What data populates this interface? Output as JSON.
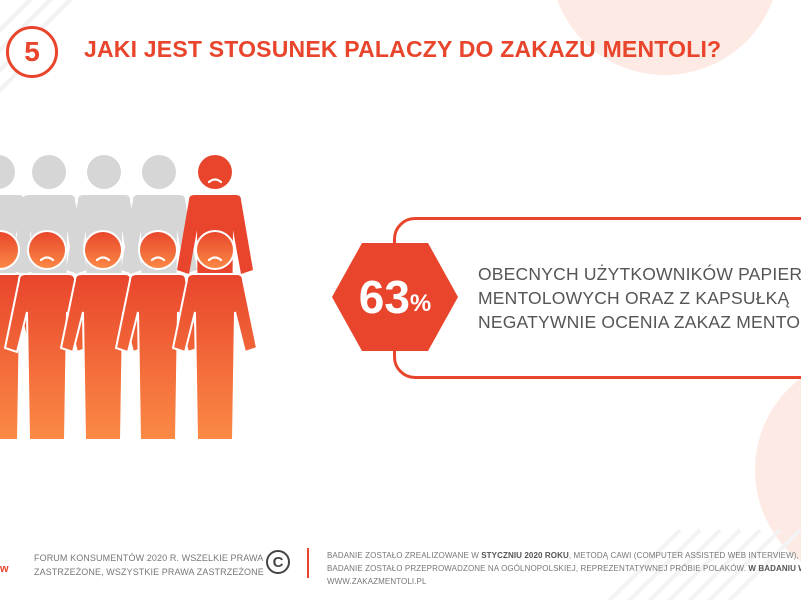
{
  "header": {
    "step_number": "5",
    "title": "JAKI JEST STOSUNEK PALACZY DO ZAKAZU MENTOLI?"
  },
  "highlight": {
    "value": "63",
    "unit": "%",
    "lines": [
      "OBECNYCH UŻYTKOWNIKÓW PAPIEROS",
      "MENTOLOWYCH ORAZ Z KAPSUŁKĄ",
      "NEGATYWNIE OCENIA ZAKAZ MENTOLI."
    ]
  },
  "footer": {
    "logo_fragment": "w",
    "rights_lines": [
      "FORUM KONSUMENTÓW 2020 R. WSZELKIE PRAWA",
      "ZASTRZEŻONE, WSZYSTKIE PRAWA ZASTRZEŻONE"
    ],
    "copyright_symbol": "C",
    "method": {
      "line1_pre": "BADANIE ZOSTAŁO ZREALIZOWANE W ",
      "line1_bold": "STYCZNIU 2020 ROKU",
      "line1_post": ", METODĄ CAWI (COMPUTER ASSISTED WEB INTERVIEW), ",
      "line2_pre": "BADANIE ZOSTAŁO PRZEPROWADZONE NA OGÓLNOPOLSKIEJ,  REPREZENTATYWNEJ PRÓBIE POLAKÓW. ",
      "line2_bold": "W BADANIU W",
      "line3": "WWW.ZAKAZMENTOLI.PL"
    }
  },
  "colors": {
    "accent": "#e8452c",
    "accent_light": "#f97a3b",
    "figure_grey": "#d6d6d6",
    "text_grey": "#555555"
  }
}
